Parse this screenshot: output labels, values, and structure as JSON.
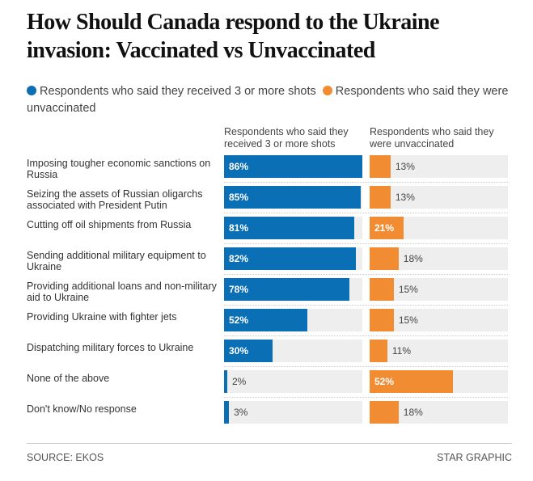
{
  "chart_data": {
    "type": "bar",
    "title": "How Should Canada respond to the Ukraine invasion: Vaccinated vs Unvaccinated",
    "legend": [
      "Respondents who said they received 3 or more shots",
      "Respondents who said they were unvaccinated"
    ],
    "categories": [
      "Imposing tougher economic sanctions on Russia",
      "Seizing the assets of Russian oligarchs associated with President Putin",
      "Cutting off oil shipments from Russia",
      "Sending additional military equipment to Ukraine",
      "Providing additional loans and non-military aid to Ukraine",
      "Providing Ukraine with fighter jets",
      "Dispatching military forces to Ukraine",
      "None of the above",
      "Don't know/No response"
    ],
    "series": [
      {
        "name": "Respondents who said they received 3 or more shots",
        "color": "#0a6fb5",
        "values": [
          86,
          85,
          81,
          82,
          78,
          52,
          30,
          2,
          3
        ]
      },
      {
        "name": "Respondents who said they were unvaccinated",
        "color": "#f28c33",
        "values": [
          13,
          13,
          21,
          18,
          15,
          15,
          11,
          52,
          18
        ]
      }
    ],
    "xlim": [
      0,
      86
    ],
    "grid": false,
    "legend_position": "top"
  },
  "footer": {
    "source": "SOURCE: EKOS",
    "credit": "STAR GRAPHIC"
  }
}
